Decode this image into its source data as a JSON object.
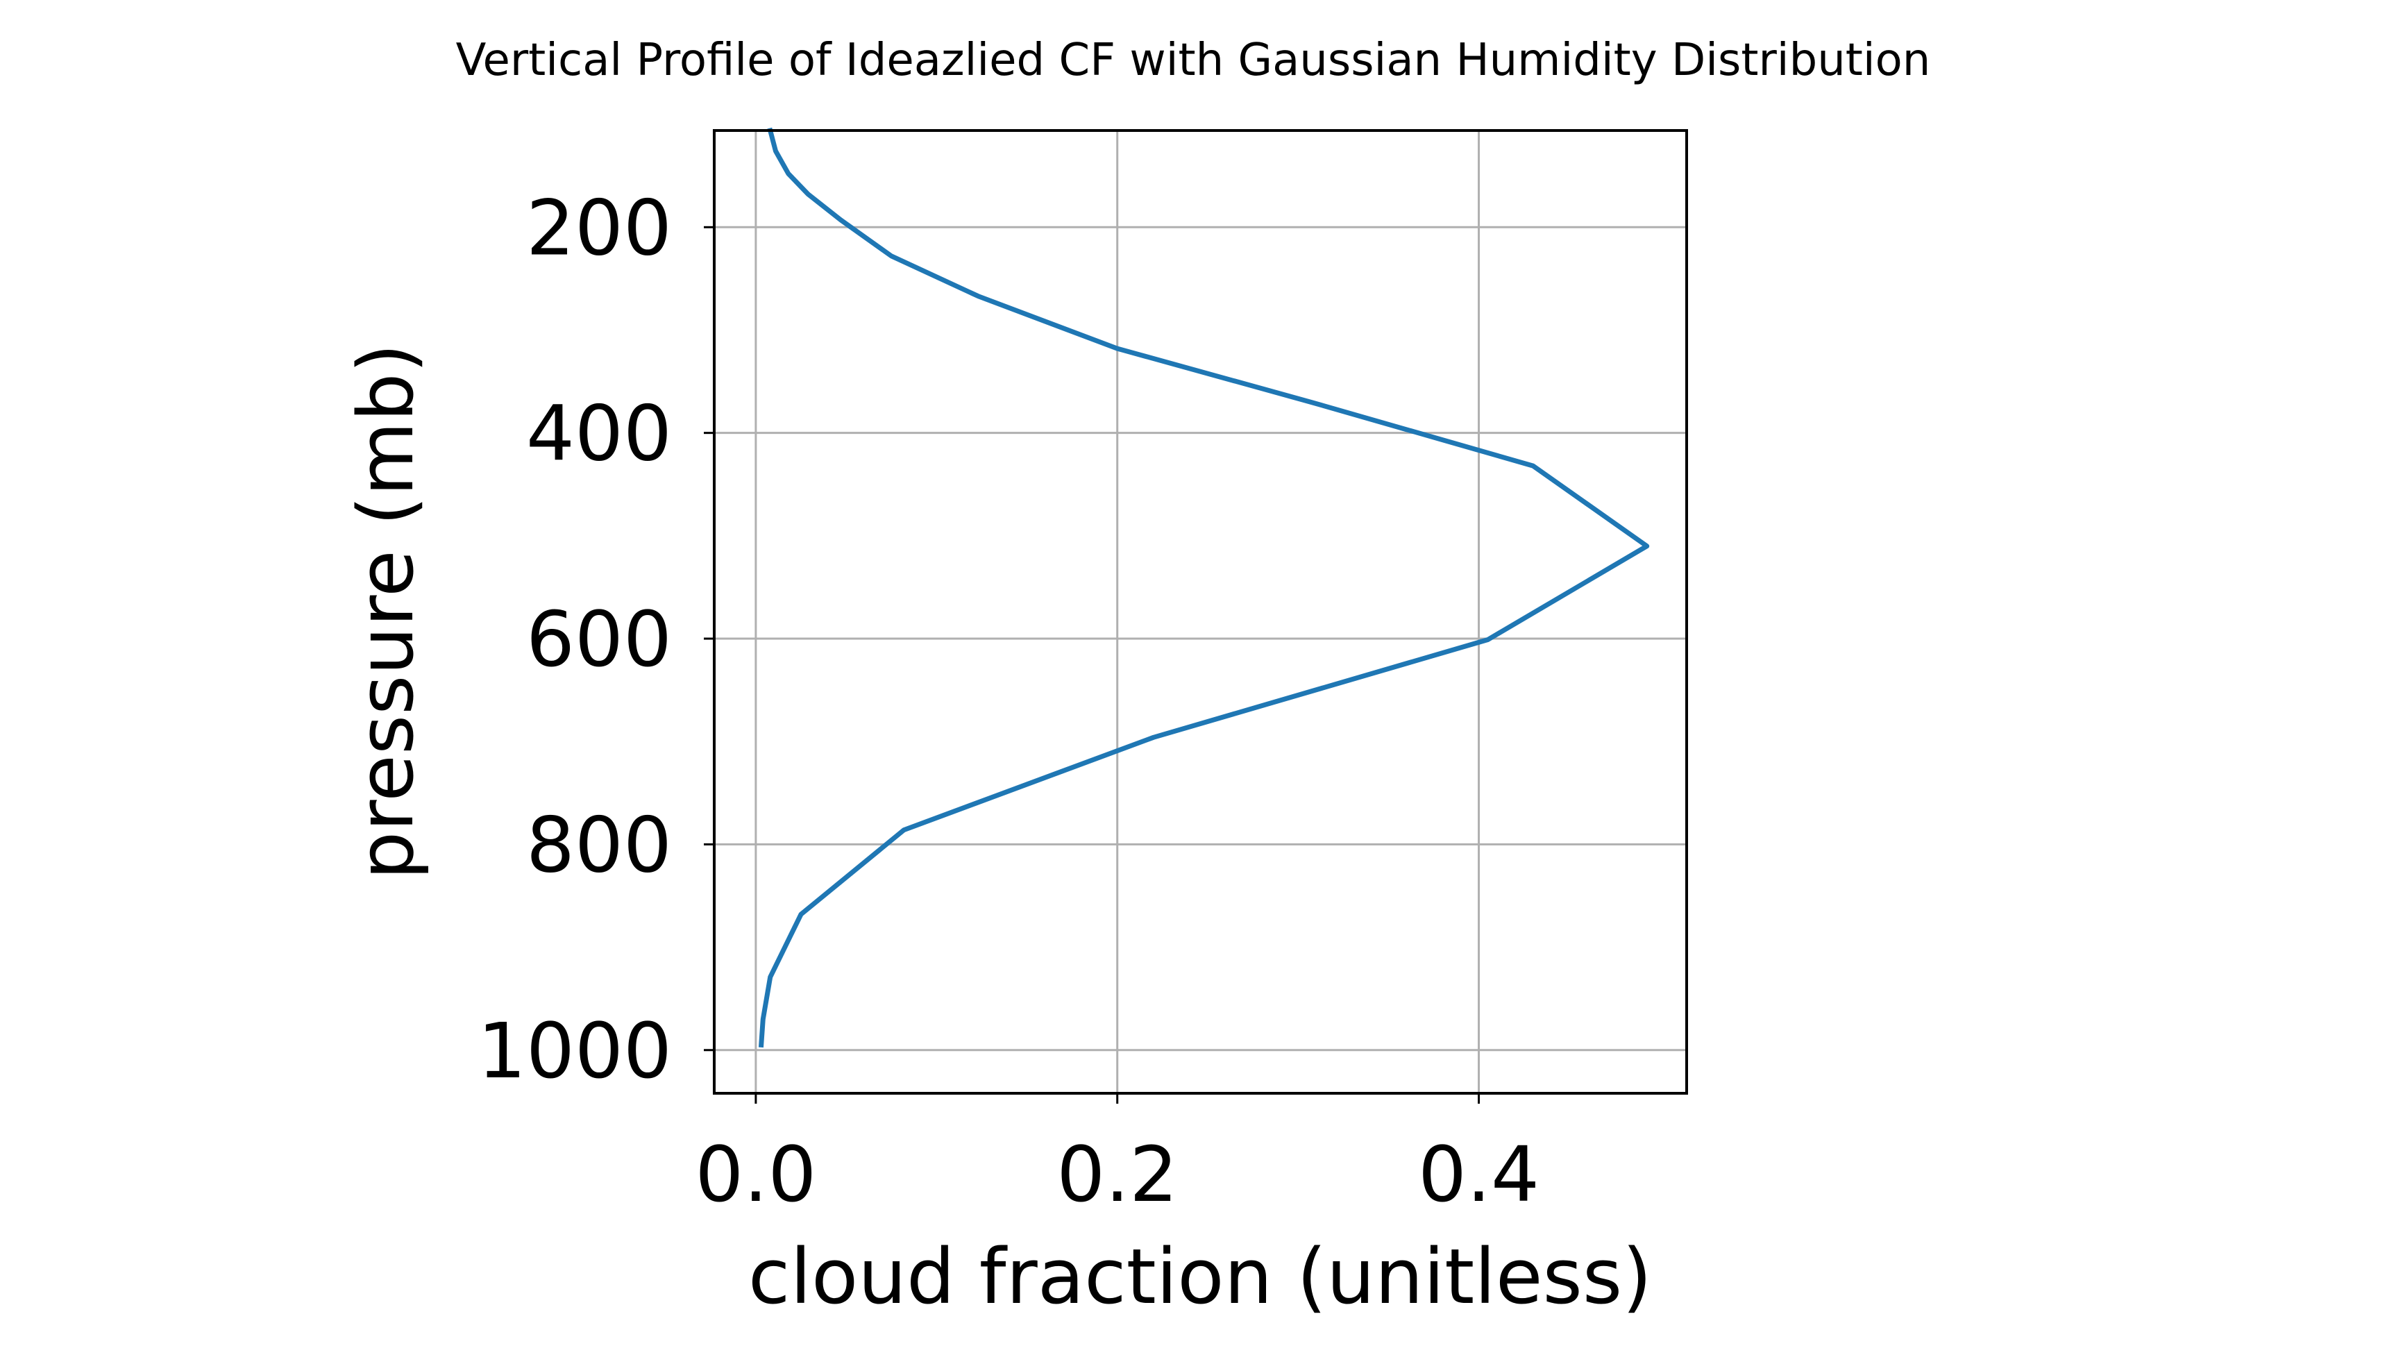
{
  "chart_data": {
    "type": "line",
    "title": "Vertical Profile of Ideazlied CF with Gaussian Humidity Distribution",
    "xlabel": "cloud fraction (unitless)",
    "ylabel": "pressure (mb)",
    "xlim": [
      -0.023,
      0.515
    ],
    "ylim": [
      1042,
      106
    ],
    "y_inverted": true,
    "grid": true,
    "x_ticks": [
      0.0,
      0.2,
      0.4
    ],
    "x_tick_labels": [
      "0.0",
      "0.2",
      "0.4"
    ],
    "y_ticks": [
      200,
      400,
      600,
      800,
      1000
    ],
    "y_tick_labels": [
      "200",
      "400",
      "600",
      "800",
      "1000"
    ],
    "series": [
      {
        "color": "#1f77b4",
        "x": [
          0.008,
          0.011,
          0.018,
          0.029,
          0.047,
          0.075,
          0.123,
          0.2,
          0.307,
          0.43,
          0.493,
          0.405,
          0.22,
          0.082,
          0.025,
          0.008,
          0.004,
          0.003
        ],
        "y": [
          106,
          126,
          148,
          168,
          193,
          228,
          267,
          318,
          370,
          432,
          510,
          601,
          696,
          786,
          868,
          929,
          970,
          995
        ]
      }
    ]
  }
}
